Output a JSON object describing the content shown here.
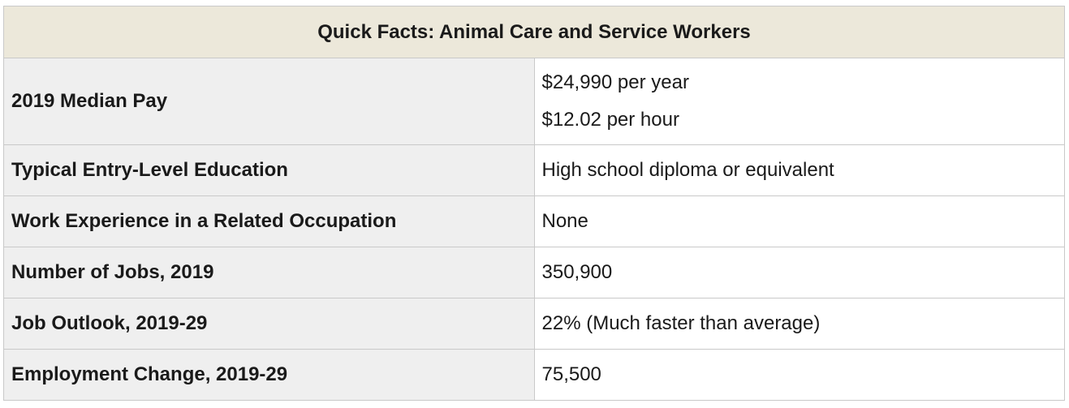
{
  "title": "Quick Facts: Animal Care and Service Workers",
  "rows": [
    {
      "label": "2019 Median Pay",
      "values": [
        "$24,990 per year",
        "$12.02 per hour"
      ]
    },
    {
      "label": "Typical Entry-Level Education",
      "values": [
        "High school diploma or equivalent"
      ]
    },
    {
      "label": "Work Experience in a Related Occupation",
      "values": [
        "None"
      ]
    },
    {
      "label": "Number of Jobs, 2019",
      "values": [
        "350,900"
      ]
    },
    {
      "label": "Job Outlook, 2019-29",
      "values": [
        "22% (Much faster than average)"
      ]
    },
    {
      "label": "Employment Change, 2019-29",
      "values": [
        "75,500"
      ]
    }
  ]
}
